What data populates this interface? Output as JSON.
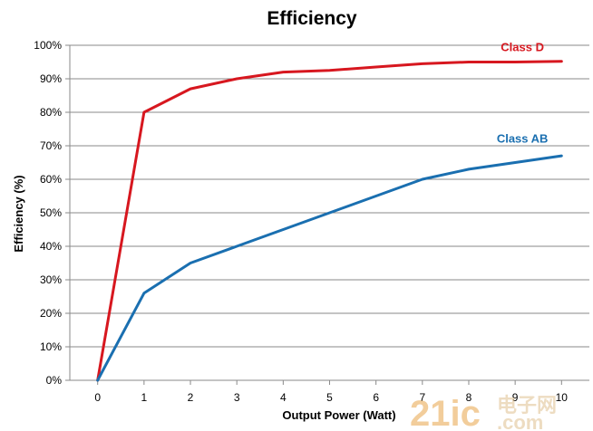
{
  "chart_data": {
    "type": "line",
    "title": "Efficiency",
    "xlabel": "Output Power (Watt)",
    "ylabel": "Efficiency (%)",
    "x": [
      0,
      1,
      2,
      3,
      4,
      5,
      6,
      7,
      8,
      9,
      10
    ],
    "x_tick_labels": [
      "0",
      "1",
      "2",
      "3",
      "4",
      "5",
      "6",
      "7",
      "8",
      "9",
      "10"
    ],
    "y_tick_labels": [
      "0%",
      "10%",
      "20%",
      "30%",
      "40%",
      "50%",
      "60%",
      "70%",
      "80%",
      "90%",
      "100%"
    ],
    "xlim": [
      -0.6,
      10.6
    ],
    "ylim": [
      0,
      100
    ],
    "grid": "horizontal",
    "series": [
      {
        "name": "Class D",
        "color": "#d7171f",
        "values": [
          0,
          80,
          87,
          90,
          92,
          92.5,
          93.5,
          94.5,
          95,
          95,
          95.2
        ]
      },
      {
        "name": "Class AB",
        "color": "#1a6fb0",
        "values": [
          0,
          26,
          35,
          40,
          45,
          50,
          55,
          60,
          63,
          65,
          67
        ]
      }
    ]
  },
  "watermark": {
    "brand": "21ic",
    "cn": "电子网",
    "domain": ".com"
  }
}
